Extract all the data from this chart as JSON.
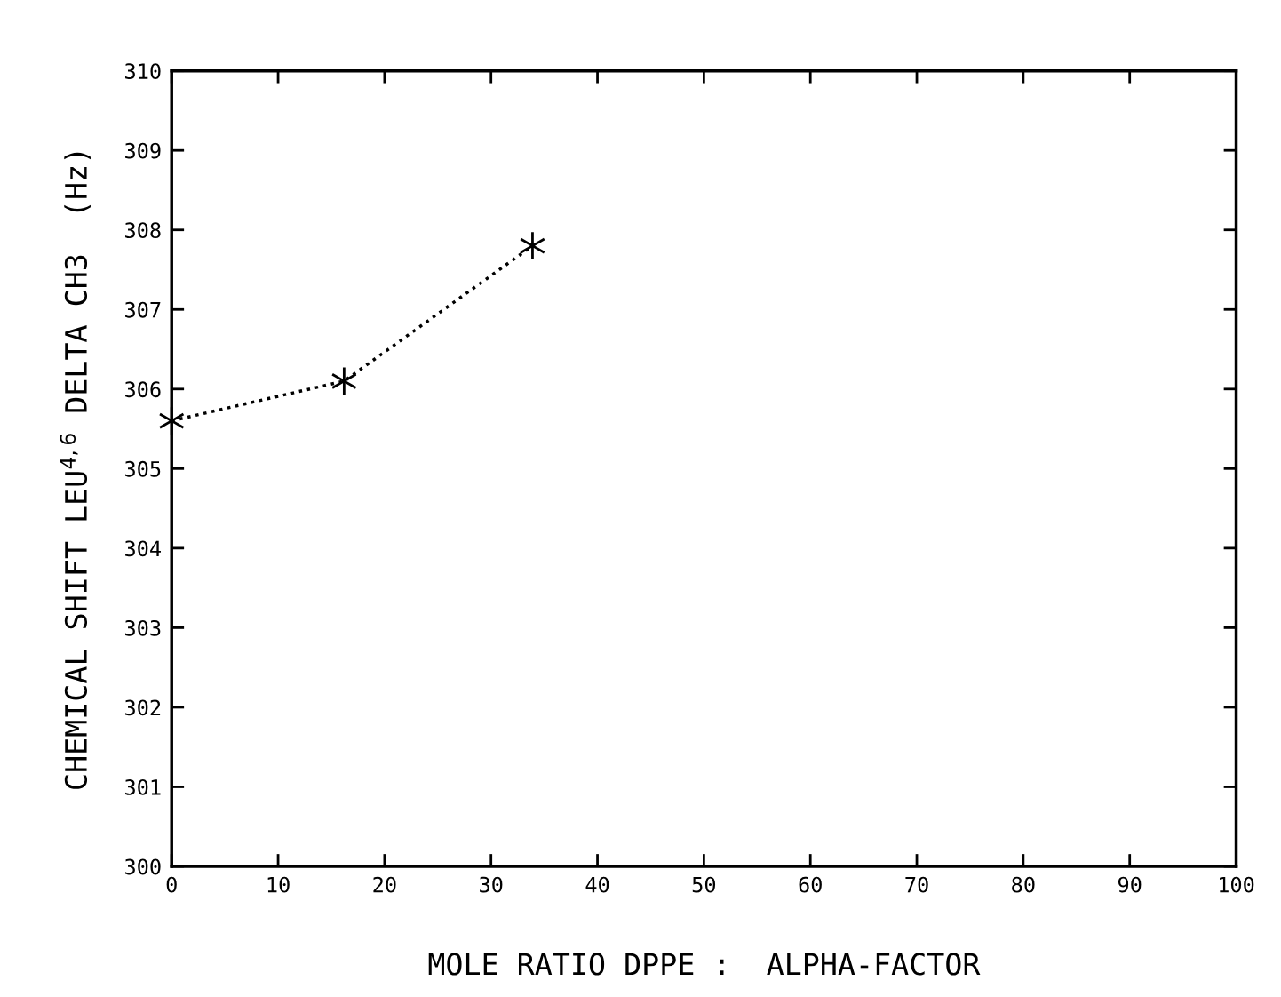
{
  "chart_data": {
    "type": "line",
    "xlabel": "MOLE RATIO DPPE :  ALPHA-FACTOR",
    "ylabel": "CHEMICAL SHIFT LEU$^{4,6}$ DELTA CH3  (Hz)",
    "x": [
      0,
      16.2,
      33.9
    ],
    "series": [
      {
        "color": "#000000",
        "values": [
          305.6,
          306.1,
          307.8
        ]
      }
    ],
    "marker": "cross",
    "line_style": "dotted",
    "grid": false,
    "xlim": [
      0,
      100
    ],
    "xticks": [
      0,
      10,
      20,
      30,
      40,
      50,
      60,
      70,
      80,
      90,
      100
    ],
    "ylim": [
      300,
      310
    ],
    "yticks": [
      300,
      301,
      302,
      303,
      304,
      305,
      306,
      307,
      308,
      309,
      310
    ]
  }
}
